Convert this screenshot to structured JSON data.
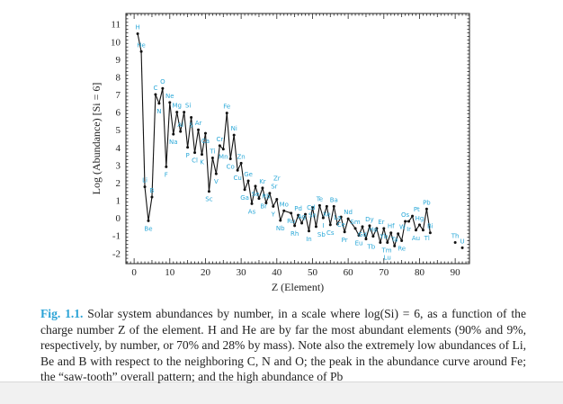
{
  "chart_data": {
    "type": "line",
    "xlabel": "Z (Element)",
    "ylabel": "Log (Abundance) [Si = 6]",
    "xlim": [
      -2.3,
      94
    ],
    "ylim": [
      -2.6,
      11.6
    ],
    "xticks": [
      0,
      10,
      20,
      30,
      40,
      50,
      60,
      70,
      80,
      90
    ],
    "yticks": [
      -2,
      -1,
      0,
      1,
      2,
      3,
      4,
      5,
      6,
      7,
      8,
      9,
      10,
      11
    ],
    "grid": false,
    "series_color": "#111111",
    "label_color": "#2aa8d8",
    "points": [
      {
        "z": 1,
        "el": "H",
        "v": 10.45
      },
      {
        "z": 2,
        "el": "He",
        "v": 9.44
      },
      {
        "z": 3,
        "el": "Li",
        "v": 1.76
      },
      {
        "z": 4,
        "el": "Be",
        "v": -0.17
      },
      {
        "z": 5,
        "el": "B",
        "v": 1.18
      },
      {
        "z": 6,
        "el": "C",
        "v": 7.0
      },
      {
        "z": 7,
        "el": "N",
        "v": 6.5
      },
      {
        "z": 8,
        "el": "O",
        "v": 7.35
      },
      {
        "z": 9,
        "el": "F",
        "v": 2.9
      },
      {
        "z": 10,
        "el": "Ne",
        "v": 6.55
      },
      {
        "z": 11,
        "el": "Na",
        "v": 4.75
      },
      {
        "z": 12,
        "el": "Mg",
        "v": 6.0
      },
      {
        "z": 13,
        "el": "Al",
        "v": 4.9
      },
      {
        "z": 14,
        "el": "Si",
        "v": 6.0
      },
      {
        "z": 15,
        "el": "P",
        "v": 4.0
      },
      {
        "z": 16,
        "el": "S",
        "v": 5.7
      },
      {
        "z": 17,
        "el": "Cl",
        "v": 3.7
      },
      {
        "z": 18,
        "el": "Ar",
        "v": 5.0
      },
      {
        "z": 19,
        "el": "K",
        "v": 3.6
      },
      {
        "z": 20,
        "el": "Ca",
        "v": 4.8
      },
      {
        "z": 21,
        "el": "Sc",
        "v": 1.5
      },
      {
        "z": 22,
        "el": "Ti",
        "v": 3.4
      },
      {
        "z": 23,
        "el": "V",
        "v": 2.5
      },
      {
        "z": 24,
        "el": "Cr",
        "v": 4.1
      },
      {
        "z": 25,
        "el": "Mn",
        "v": 3.9
      },
      {
        "z": 26,
        "el": "Fe",
        "v": 5.95
      },
      {
        "z": 27,
        "el": "Co",
        "v": 3.35
      },
      {
        "z": 28,
        "el": "Ni",
        "v": 4.7
      },
      {
        "z": 29,
        "el": "Cu",
        "v": 2.7
      },
      {
        "z": 30,
        "el": "Zn",
        "v": 3.1
      },
      {
        "z": 31,
        "el": "Ga",
        "v": 1.6
      },
      {
        "z": 32,
        "el": "Ge",
        "v": 2.1
      },
      {
        "z": 33,
        "el": "As",
        "v": 0.8
      },
      {
        "z": 34,
        "el": "Se",
        "v": 1.8
      },
      {
        "z": 35,
        "el": "Br",
        "v": 1.1
      },
      {
        "z": 36,
        "el": "Kr",
        "v": 1.7
      },
      {
        "z": 37,
        "el": "Rb",
        "v": 0.85
      },
      {
        "z": 38,
        "el": "Sr",
        "v": 1.4
      },
      {
        "z": 39,
        "el": "Y",
        "v": 0.65
      },
      {
        "z": 40,
        "el": "Zr",
        "v": 1.05
      },
      {
        "z": 41,
        "el": "Nb",
        "v": -0.15
      },
      {
        "z": 42,
        "el": "Mo",
        "v": 0.4
      },
      {
        "z": 44,
        "el": "Ru",
        "v": 0.27
      },
      {
        "z": 45,
        "el": "Rh",
        "v": -0.45
      },
      {
        "z": 46,
        "el": "Pd",
        "v": 0.15
      },
      {
        "z": 47,
        "el": "Ag",
        "v": -0.3
      },
      {
        "z": 48,
        "el": "Cd",
        "v": 0.2
      },
      {
        "z": 49,
        "el": "In",
        "v": -0.75
      },
      {
        "z": 50,
        "el": "Sn",
        "v": 0.6
      },
      {
        "z": 51,
        "el": "Sb",
        "v": -0.5
      },
      {
        "z": 52,
        "el": "Te",
        "v": 0.7
      },
      {
        "z": 53,
        "el": "I",
        "v": 0.0
      },
      {
        "z": 54,
        "el": "Xe",
        "v": 0.65
      },
      {
        "z": 55,
        "el": "Cs",
        "v": -0.4
      },
      {
        "z": 56,
        "el": "Ba",
        "v": 0.65
      },
      {
        "z": 57,
        "el": "La",
        "v": -0.35
      },
      {
        "z": 58,
        "el": "Ce",
        "v": 0.05
      },
      {
        "z": 59,
        "el": "Pr",
        "v": -0.8
      },
      {
        "z": 60,
        "el": "Nd",
        "v": -0.05
      },
      {
        "z": 62,
        "el": "Sm",
        "v": -0.6
      },
      {
        "z": 63,
        "el": "Eu",
        "v": -1.0
      },
      {
        "z": 64,
        "el": "Gd",
        "v": -0.5
      },
      {
        "z": 65,
        "el": "Tb",
        "v": -1.2
      },
      {
        "z": 66,
        "el": "Dy",
        "v": -0.45
      },
      {
        "z": 67,
        "el": "Ho",
        "v": -1.05
      },
      {
        "z": 68,
        "el": "Er",
        "v": -0.6
      },
      {
        "z": 69,
        "el": "Tm",
        "v": -1.4
      },
      {
        "z": 70,
        "el": "Yb",
        "v": -0.6
      },
      {
        "z": 71,
        "el": "Lu",
        "v": -1.4
      },
      {
        "z": 72,
        "el": "Hf",
        "v": -0.85
      },
      {
        "z": 73,
        "el": "Ta",
        "v": -1.6
      },
      {
        "z": 74,
        "el": "W",
        "v": -0.9
      },
      {
        "z": 75,
        "el": "Re",
        "v": -1.3
      },
      {
        "z": 76,
        "el": "Os",
        "v": -0.2
      },
      {
        "z": 77,
        "el": "Ir",
        "v": -0.2
      },
      {
        "z": 78,
        "el": "Pt",
        "v": 0.1
      },
      {
        "z": 79,
        "el": "Au",
        "v": -0.7
      },
      {
        "z": 80,
        "el": "Hg",
        "v": -0.4
      },
      {
        "z": 81,
        "el": "Tl",
        "v": -0.7
      },
      {
        "z": 82,
        "el": "Pb",
        "v": 0.5
      },
      {
        "z": 83,
        "el": "Bi",
        "v": -0.85
      },
      {
        "z": 90,
        "el": "Th",
        "v": -1.4
      },
      {
        "z": 92,
        "el": "U",
        "v": -1.7
      }
    ]
  },
  "caption": {
    "label": "Fig. 1.1.",
    "text": "Solar system abundances by number, in a scale where log(Si) = 6, as a function of the charge number Z of the element. H and He are by far the most abundant elements (90% and 9%, respectively, by number, or 70% and 28% by mass). Note also the extremely low abundances of Li, Be and B with respect to the neighboring C, N and O; the peak in the abundance curve around Fe; the “saw-tooth” overall pattern; and the high abundance of Pb"
  }
}
